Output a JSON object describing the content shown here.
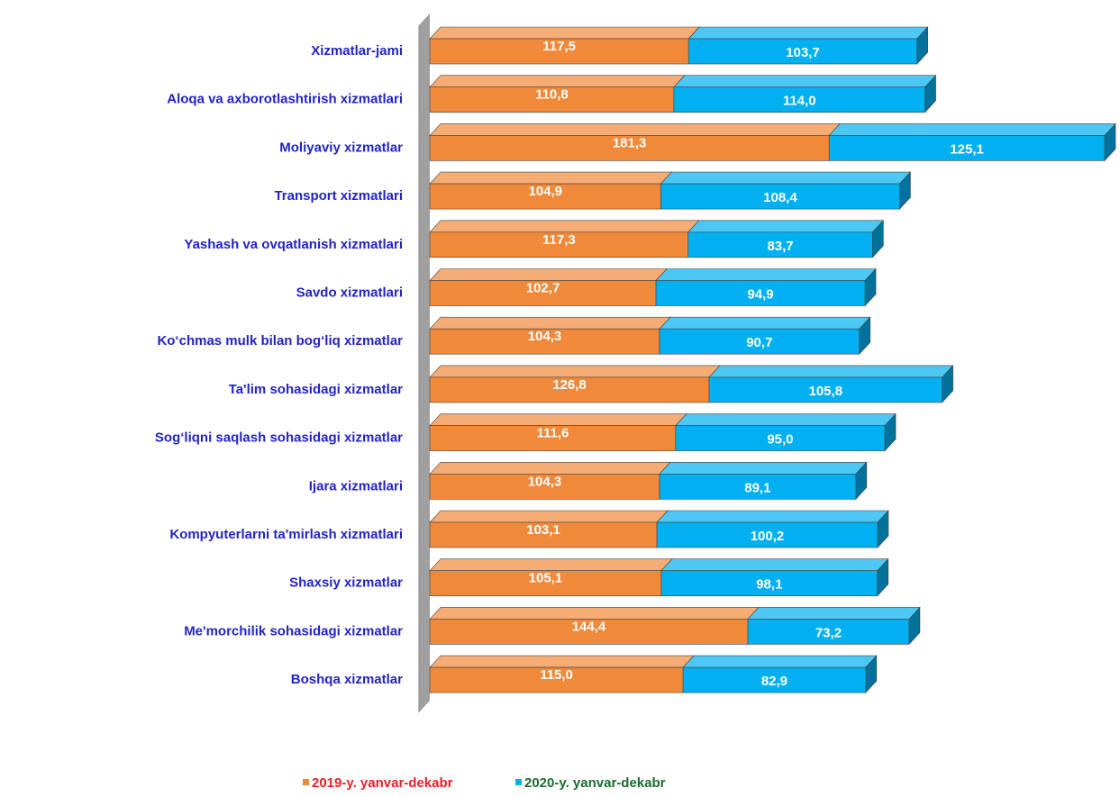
{
  "chart_data": {
    "type": "bar_stacked_horizontal",
    "categories": [
      "Xizmatlar-jami",
      "Aloqa va axborotlashtirish xizmatlari",
      "Moliyaviy xizmatlar",
      "Transport xizmatlari",
      "Yashash va ovqatlanish xizmatlari",
      "Savdo xizmatlari",
      "Ko‘chmas mulk bilan bog‘liq xizmatlar",
      "Ta'lim sohasidagi xizmatlar",
      "Sog‘liqni saqlash sohasidagi xizmatlar",
      "Ijara xizmatlari",
      "Kompyuterlarni ta'mirlash xizmatlari",
      "Shaxsiy xizmatlar",
      "Me'morchilik sohasidagi xizmatlar",
      "Boshqa xizmatlar"
    ],
    "series": [
      {
        "name": "2019-y. yanvar-dekabr",
        "color": "#f0893a",
        "values": [
          117.5,
          110.8,
          181.3,
          104.9,
          117.3,
          102.7,
          104.3,
          126.8,
          111.6,
          104.3,
          103.1,
          105.1,
          144.4,
          115.0
        ],
        "value_labels": [
          "117,5",
          "110,8",
          "181,3",
          "104,9",
          "117,3",
          "102,7",
          "104,3",
          "126,8",
          "111,6",
          "104,3",
          "103,1",
          "105,1",
          "144,4",
          "115,0"
        ]
      },
      {
        "name": "2020-y. yanvar-dekabr",
        "color": "#00b0f0",
        "values": [
          103.7,
          114.0,
          125.1,
          108.4,
          83.7,
          94.9,
          90.7,
          105.8,
          95.0,
          89.1,
          100.2,
          98.1,
          73.2,
          82.9
        ],
        "value_labels": [
          "103,7",
          "114,0",
          "125,1",
          "108,4",
          "83,7",
          "94,9",
          "90,7",
          "105,8",
          "95,0",
          "89,1",
          "100,2",
          "98,1",
          "73,2",
          "82,9"
        ]
      }
    ]
  }
}
